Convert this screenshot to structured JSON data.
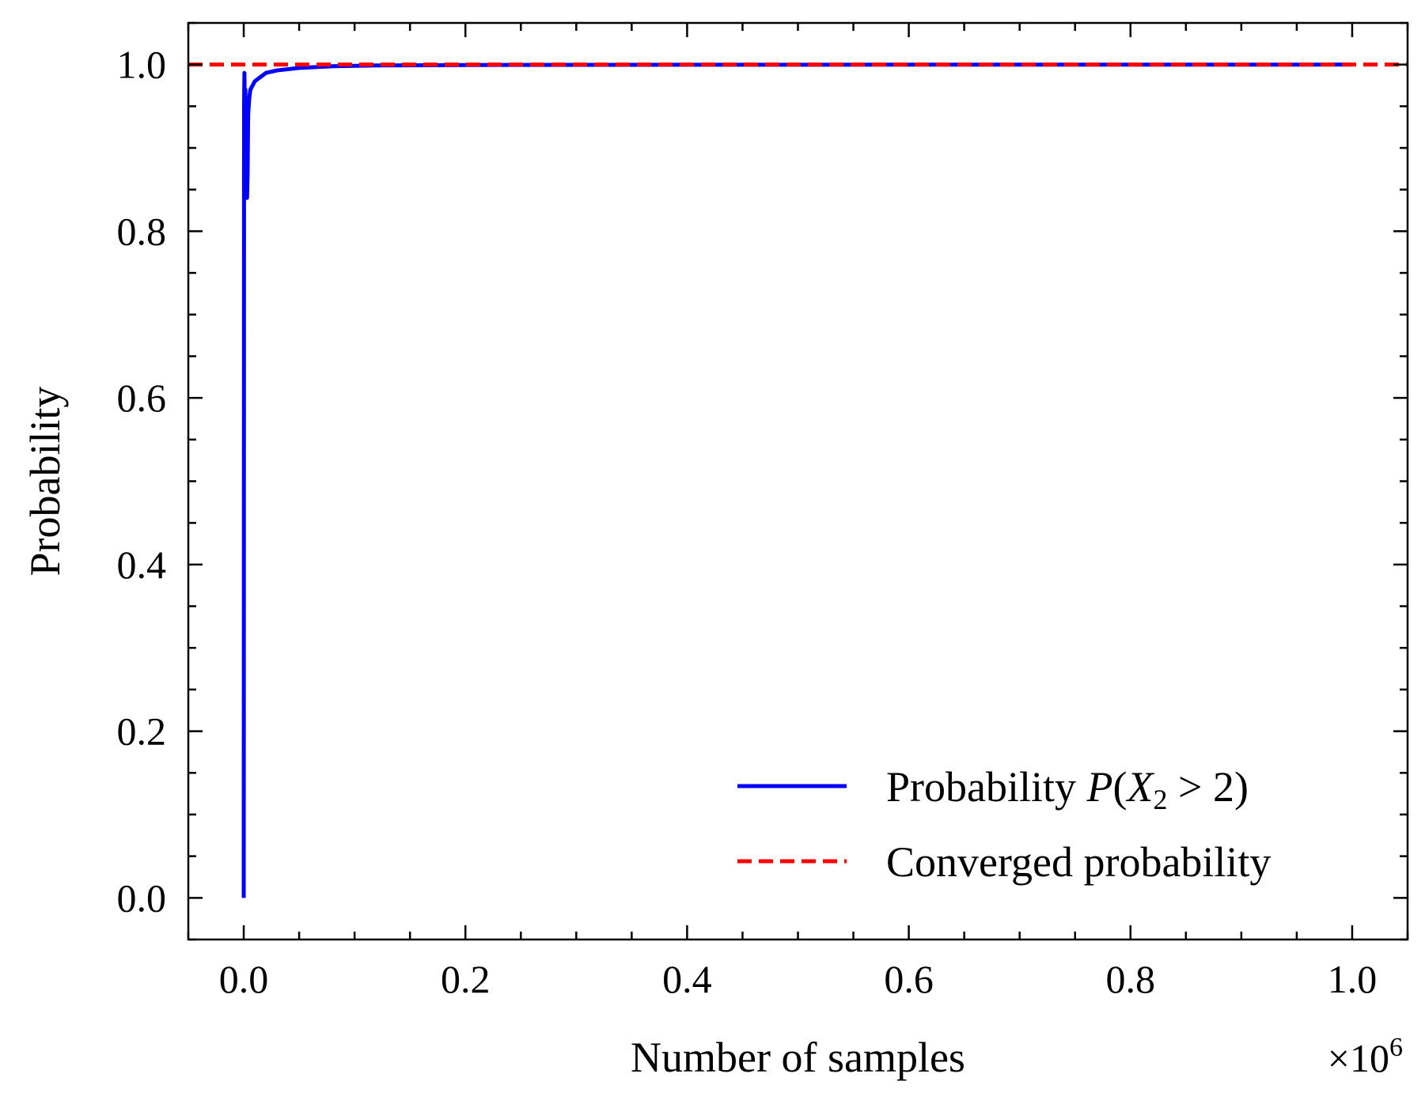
{
  "chart_data": {
    "type": "line",
    "title": "",
    "xlabel": "Number of samples",
    "ylabel": "Probability",
    "x_offset_label": "×10",
    "x_offset_exponent": "6",
    "xlim": [
      -0.05,
      1.05
    ],
    "ylim": [
      -0.05,
      1.05
    ],
    "x_ticks": [
      0.0,
      0.2,
      0.4,
      0.6,
      0.8,
      1.0
    ],
    "x_tick_labels": [
      "0.0",
      "0.2",
      "0.4",
      "0.6",
      "0.8",
      "1.0"
    ],
    "y_ticks": [
      0.0,
      0.2,
      0.4,
      0.6,
      0.8,
      1.0
    ],
    "y_tick_labels": [
      "0.0",
      "0.2",
      "0.4",
      "0.6",
      "0.8",
      "1.0"
    ],
    "grid": false,
    "legend_position": "lower-right",
    "series": [
      {
        "name_prefix": "Probability ",
        "name_math": "P",
        "name_open": "(",
        "name_var": "X",
        "name_sub": "2",
        "name_rest": " > 2)",
        "style": "solid",
        "color": "#0000ff",
        "x": [
          0.0,
          0.0003,
          0.0006,
          0.001,
          0.0015,
          0.002,
          0.0025,
          0.003,
          0.0035,
          0.004,
          0.005,
          0.006,
          0.008,
          0.01,
          0.015,
          0.02,
          0.03,
          0.05,
          0.08,
          0.12,
          0.2,
          0.4,
          0.6,
          0.8,
          1.0
        ],
        "y": [
          0.0,
          0.95,
          0.99,
          0.94,
          0.97,
          0.88,
          0.86,
          0.84,
          0.87,
          0.94,
          0.96,
          0.97,
          0.975,
          0.98,
          0.985,
          0.99,
          0.993,
          0.996,
          0.998,
          0.999,
          0.9995,
          0.9998,
          0.9999,
          0.9999,
          1.0
        ]
      },
      {
        "name": "Converged probability",
        "style": "dashed",
        "color": "#ff0000",
        "x": [
          -0.05,
          1.05
        ],
        "y": [
          1.0,
          1.0
        ]
      }
    ]
  }
}
